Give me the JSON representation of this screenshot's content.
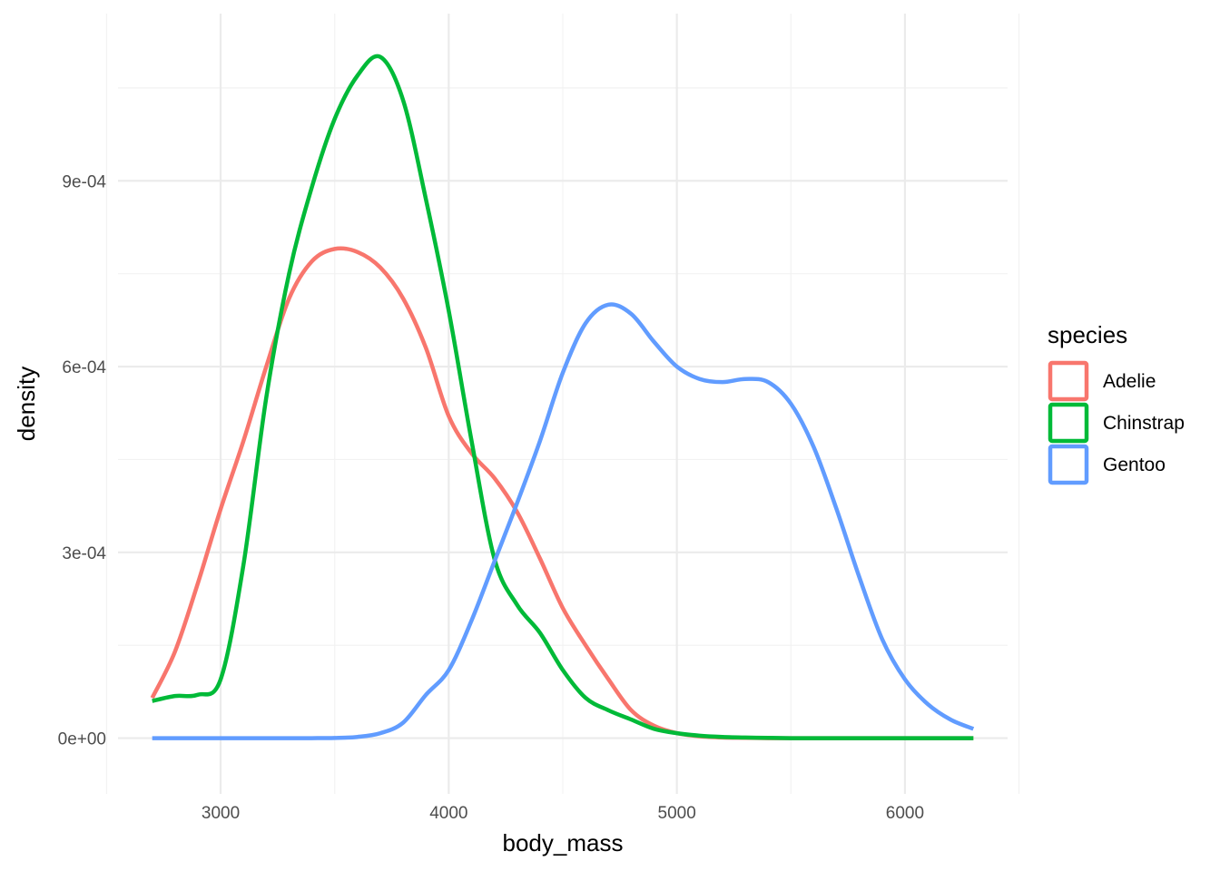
{
  "chart_data": {
    "type": "line",
    "subtype": "density",
    "xlabel": "body_mass",
    "ylabel": "density",
    "xlim": [
      2550,
      6450
    ],
    "ylim": [
      -9e-05,
      0.00117
    ],
    "x_ticks": [
      3000,
      4000,
      5000,
      6000
    ],
    "x_tick_labels": [
      "3000",
      "4000",
      "5000",
      "6000"
    ],
    "y_ticks": [
      0,
      0.0003,
      0.0006,
      0.0009
    ],
    "y_tick_labels": [
      "0e+00",
      "3e-04",
      "6e-04",
      "9e-04"
    ],
    "grid": true,
    "legend": {
      "title": "species",
      "position": "right"
    },
    "series": [
      {
        "name": "Adelie",
        "color": "#F8766D",
        "x": [
          2700,
          2800,
          2900,
          3000,
          3100,
          3200,
          3300,
          3400,
          3500,
          3600,
          3700,
          3800,
          3900,
          4000,
          4100,
          4200,
          4300,
          4400,
          4500,
          4600,
          4700,
          4800,
          4900,
          5000,
          5100,
          5200,
          5300,
          5400,
          5500,
          5600,
          5700,
          5800,
          5900,
          6000,
          6100,
          6200,
          6300
        ],
        "values": [
          6.5e-05,
          0.00014,
          0.00025,
          0.00037,
          0.00048,
          0.0006,
          0.00071,
          0.00077,
          0.00079,
          0.000785,
          0.00076,
          0.00071,
          0.00063,
          0.00052,
          0.00046,
          0.00042,
          0.000365,
          0.00029,
          0.00021,
          0.00015,
          9.5e-05,
          4.5e-05,
          2e-05,
          8e-06,
          3e-06,
          1e-06,
          5e-07,
          0,
          0,
          0,
          0,
          0,
          0,
          0,
          0,
          0,
          0
        ]
      },
      {
        "name": "Chinstrap",
        "color": "#00BA38",
        "x": [
          2700,
          2800,
          2900,
          3000,
          3100,
          3200,
          3300,
          3400,
          3500,
          3600,
          3700,
          3800,
          3900,
          4000,
          4100,
          4200,
          4300,
          4400,
          4500,
          4600,
          4700,
          4800,
          4900,
          5000,
          5100,
          5200,
          5300,
          5400,
          5500,
          5600,
          5700,
          5800,
          5900,
          6000,
          6100,
          6200,
          6300
        ],
        "values": [
          6e-05,
          6.8e-05,
          7e-05,
          9.5e-05,
          0.00028,
          0.00055,
          0.00075,
          0.00089,
          0.001,
          0.00107,
          0.0011,
          0.00103,
          0.00087,
          0.00069,
          0.00048,
          0.00029,
          0.000215,
          0.00017,
          0.00011,
          6.5e-05,
          4.5e-05,
          3e-05,
          1.5e-05,
          8e-06,
          4e-06,
          2e-06,
          1e-06,
          5e-07,
          0,
          0,
          0,
          0,
          0,
          0,
          0,
          0,
          0
        ]
      },
      {
        "name": "Gentoo",
        "color": "#619CFF",
        "x": [
          2700,
          2800,
          2900,
          3000,
          3100,
          3200,
          3300,
          3400,
          3500,
          3600,
          3700,
          3800,
          3900,
          4000,
          4100,
          4200,
          4300,
          4400,
          4500,
          4600,
          4700,
          4800,
          4900,
          5000,
          5100,
          5200,
          5300,
          5400,
          5500,
          5600,
          5700,
          5800,
          5900,
          6000,
          6100,
          6200,
          6300
        ],
        "values": [
          0,
          0,
          0,
          0,
          0,
          0,
          0,
          0,
          3e-07,
          2e-06,
          8e-06,
          2.5e-05,
          7e-05,
          0.00011,
          0.00019,
          0.000285,
          0.00038,
          0.00048,
          0.00059,
          0.00067,
          0.0007,
          0.000685,
          0.00064,
          0.0006,
          0.00058,
          0.000575,
          0.00058,
          0.000575,
          0.00054,
          0.00047,
          0.00037,
          0.00026,
          0.00016,
          9.5e-05,
          5.5e-05,
          3e-05,
          1.5e-05
        ]
      }
    ]
  }
}
